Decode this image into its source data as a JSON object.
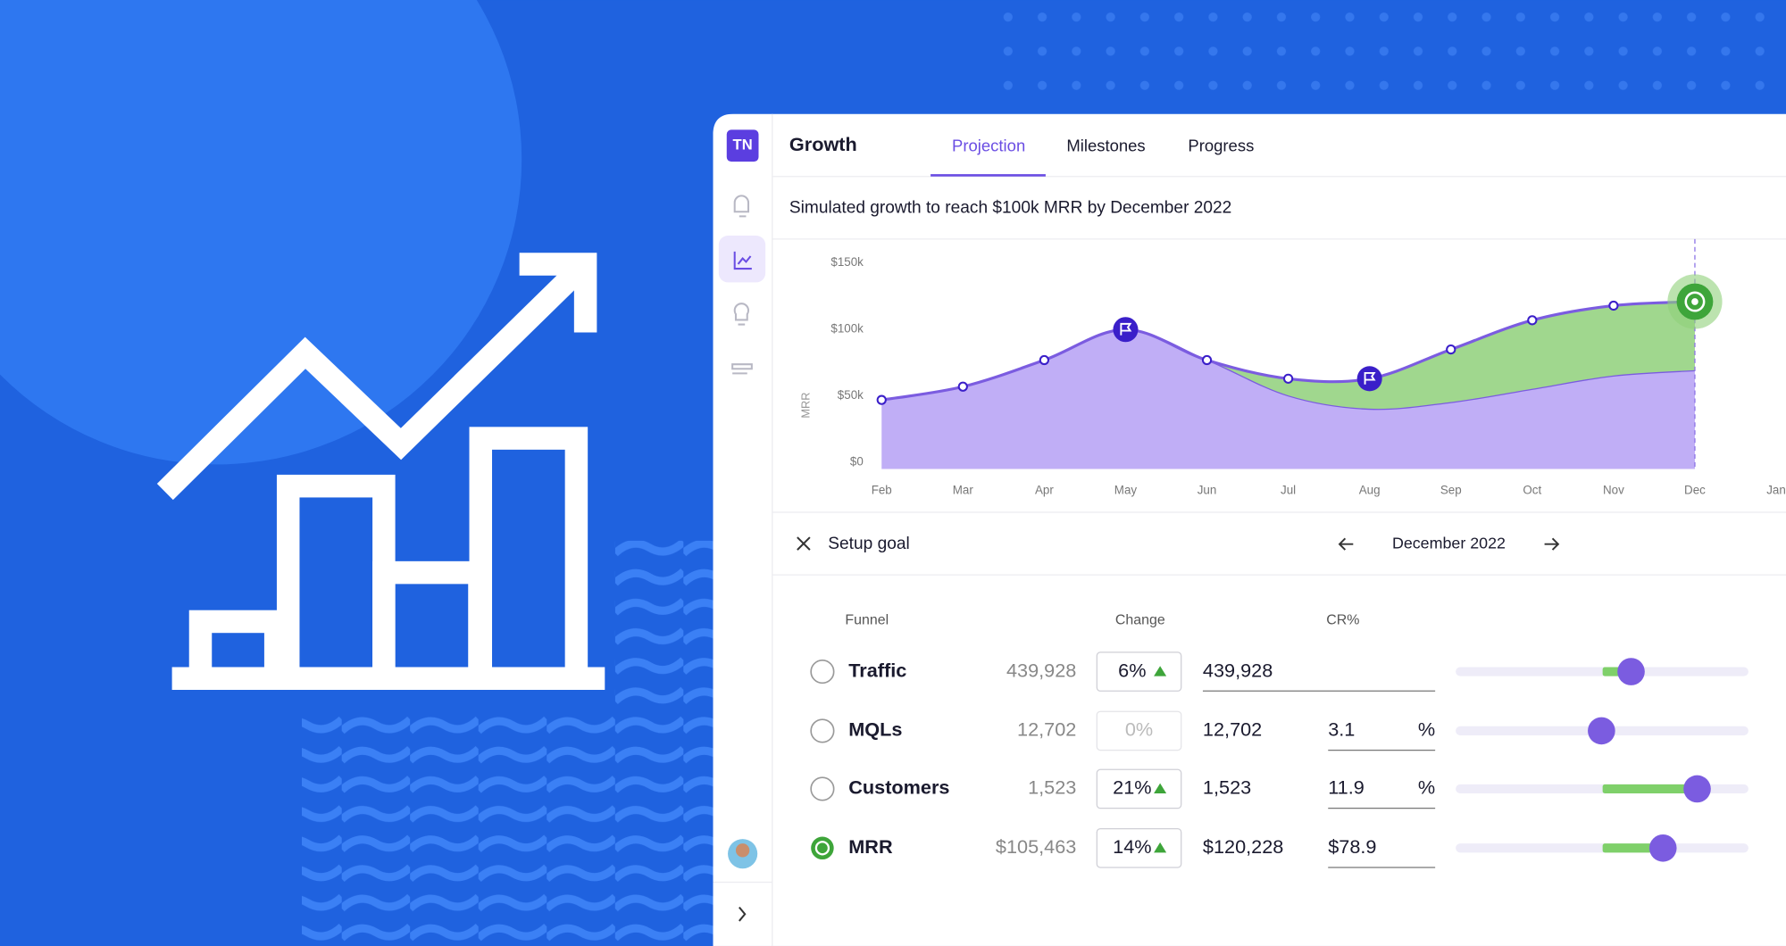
{
  "app": {
    "logo": "TN",
    "title": "Growth",
    "tabs": [
      "Projection",
      "Milestones",
      "Progress"
    ]
  },
  "subtitle": "Simulated growth to reach $100k MRR by December 2022",
  "chart_data": {
    "type": "area",
    "ylabel": "MRR",
    "categories": [
      "Feb",
      "Mar",
      "Apr",
      "May",
      "Jun",
      "Jul",
      "Aug",
      "Sep",
      "Oct",
      "Nov",
      "Dec",
      "Jan"
    ],
    "series": [
      {
        "color": "#7b5ce0",
        "fill": "#8fd07a",
        "values": [
          52000,
          62000,
          82000,
          105000,
          82000,
          68000,
          68000,
          90000,
          112000,
          123000,
          126000,
          null
        ]
      },
      {
        "color": "#7b5ce0",
        "fill": "#b9a5f5",
        "values": [
          52000,
          62000,
          82000,
          105000,
          82000,
          55000,
          45000,
          50000,
          60000,
          70000,
          74000,
          null
        ]
      }
    ],
    "ylim": [
      0,
      160000
    ],
    "yticks": [
      {
        "value": 0,
        "label": "$0"
      },
      {
        "value": 50000,
        "label": "$50k"
      },
      {
        "value": 100000,
        "label": "$100k"
      },
      {
        "value": 150000,
        "label": "$150k"
      }
    ]
  },
  "goal": {
    "title": "Setup goal",
    "period": "December 2022",
    "headers": [
      "Funnel",
      "Change",
      "CR%"
    ],
    "rows": [
      {
        "name": "Traffic",
        "current": "439,928",
        "change": "6%",
        "projected": "439,928"
      },
      {
        "name": "MQLs",
        "current": "12,702",
        "change": "0%",
        "projected": "12,702",
        "cr": "3.1",
        "unit": "%"
      },
      {
        "name": "Customers",
        "current": "1,523",
        "change": "21%",
        "projected": "1,523",
        "cr": "11.9",
        "unit": "%"
      },
      {
        "name": "MRR",
        "current": "$105,463",
        "change": "14%",
        "projected": "$120,228",
        "cr": "$78.9"
      }
    ]
  }
}
